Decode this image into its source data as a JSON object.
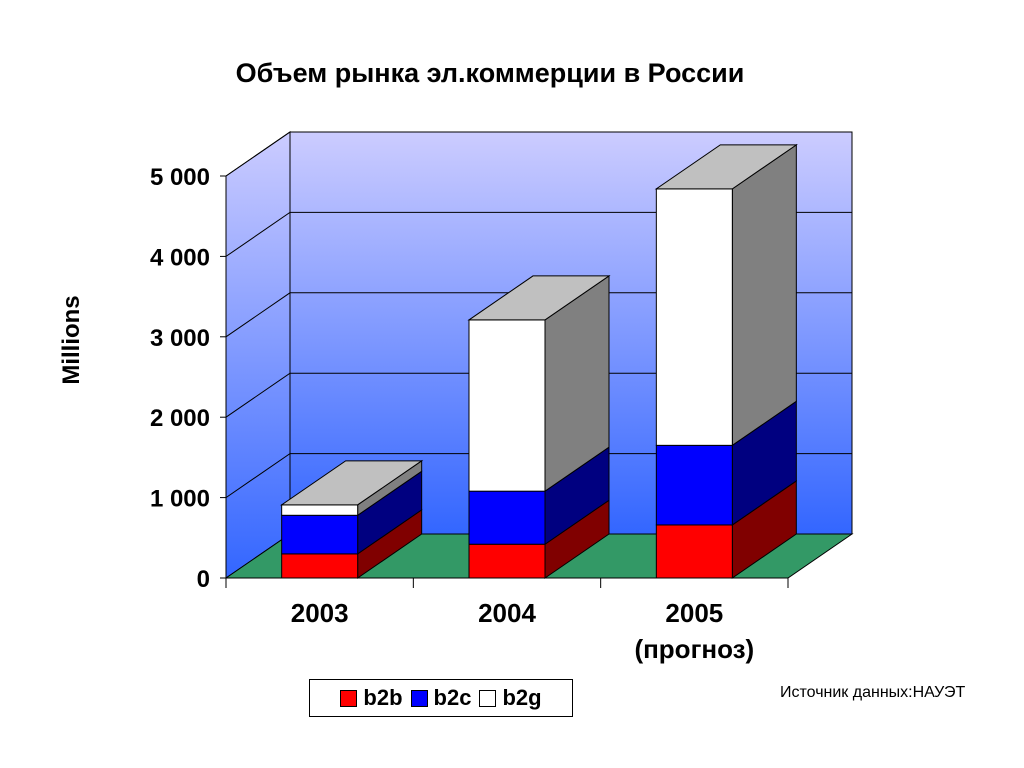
{
  "chart_data": {
    "type": "bar",
    "stacked": true,
    "three_d": true,
    "title": "Объем рынка эл.коммерции в России",
    "ylabel": "Millions",
    "categories": [
      "2003",
      "2004",
      "2005\n(прогноз)"
    ],
    "ylim": [
      0,
      5000
    ],
    "yticks": [
      0,
      1000,
      2000,
      3000,
      4000,
      5000
    ],
    "ytick_labels": [
      "0",
      "1 000",
      "2 000",
      "3 000",
      "4 000",
      "5 000"
    ],
    "series": [
      {
        "name": "b2b",
        "values": [
          300,
          420,
          660
        ],
        "color": "#ff0000"
      },
      {
        "name": "b2c",
        "values": [
          480,
          660,
          990
        ],
        "color": "#0000ff"
      },
      {
        "name": "b2g",
        "values": [
          130,
          2130,
          3190
        ],
        "color": "#ffffff"
      }
    ],
    "grid": true,
    "legend_position": "bottom",
    "wall_color": "#3366ff",
    "floor_color": "#339966",
    "bar_top_color": "#c0c0c0",
    "bar_side_color": "#808080"
  },
  "source_note": "Источник данных:НАУЭТ"
}
